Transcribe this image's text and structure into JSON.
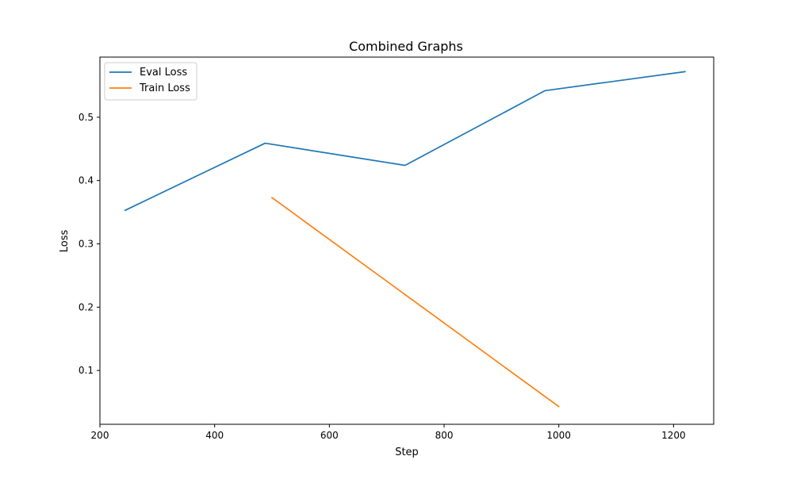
{
  "chart_data": {
    "type": "line",
    "title": "Combined Graphs",
    "xlabel": "Step",
    "ylabel": "Loss",
    "xlim": [
      200,
      1270
    ],
    "ylim": [
      0.015,
      0.595
    ],
    "xticks": [
      200,
      400,
      600,
      800,
      1000,
      1200
    ],
    "yticks": [
      0.1,
      0.2,
      0.3,
      0.4,
      0.5
    ],
    "grid": false,
    "legend_position": "upper-left",
    "series": [
      {
        "name": "Eval Loss",
        "color": "#1f77b4",
        "x": [
          244,
          488,
          732,
          976,
          1220
        ],
        "y": [
          0.353,
          0.459,
          0.424,
          0.542,
          0.572
        ]
      },
      {
        "name": "Train Loss",
        "color": "#ff7f0e",
        "x": [
          500,
          1000
        ],
        "y": [
          0.373,
          0.043
        ]
      }
    ]
  }
}
